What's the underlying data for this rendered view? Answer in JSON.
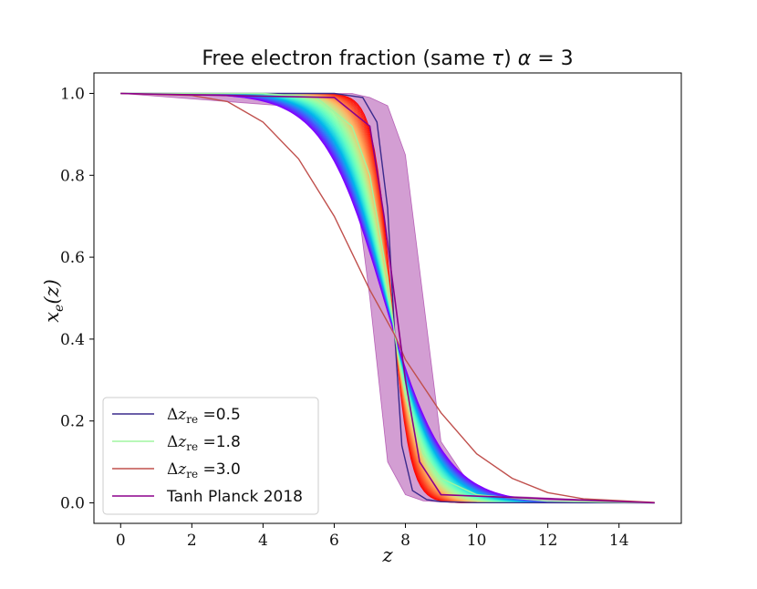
{
  "chart_data": {
    "type": "line",
    "title": "Free electron fraction (same τ) α = 3",
    "xlabel": "z",
    "ylabel": "x_e(z)",
    "xlim": [
      -0.75,
      15.75
    ],
    "ylim": [
      -0.05,
      1.05
    ],
    "xticks": [
      0,
      2,
      4,
      6,
      8,
      10,
      12,
      14
    ],
    "yticks": [
      0.0,
      0.2,
      0.4,
      0.6,
      0.8,
      1.0
    ],
    "xtick_labels": [
      "0",
      "2",
      "4",
      "6",
      "8",
      "10",
      "12",
      "14"
    ],
    "ytick_labels": [
      "0.0",
      "0.2",
      "0.4",
      "0.6",
      "0.8",
      "1.0"
    ],
    "grid": false,
    "legend_position": "lower-left",
    "x_range": [
      0,
      15
    ],
    "delta_z_re_range": [
      0.5,
      3.0
    ],
    "num_curves": 60,
    "colormap": "rainbow",
    "crossing_point": {
      "z": 7.7,
      "x_e": 0.41
    },
    "series": [
      {
        "name": "Δz_re =0.5",
        "color": "#3a2a8c",
        "x": [
          0,
          4,
          6,
          6.8,
          7.2,
          7.5,
          7.7,
          7.9,
          8.2,
          8.6,
          9,
          10,
          15
        ],
        "y": [
          1.0,
          1.0,
          1.0,
          0.99,
          0.93,
          0.72,
          0.41,
          0.14,
          0.03,
          0.008,
          0.003,
          0.0005,
          0.0
        ]
      },
      {
        "name": "Δz_re =1.8",
        "color": "#a0f5a0",
        "x": [
          0,
          4,
          5.5,
          6.5,
          7,
          7.5,
          7.7,
          8,
          8.5,
          9,
          10,
          12,
          15
        ],
        "y": [
          1.0,
          1.0,
          0.99,
          0.92,
          0.8,
          0.55,
          0.41,
          0.26,
          0.12,
          0.06,
          0.02,
          0.004,
          0.0
        ]
      },
      {
        "name": "Δz_re =3.0",
        "color": "#c0504d",
        "x": [
          0,
          2,
          3,
          4,
          5,
          6,
          7,
          7.7,
          8,
          9,
          10,
          11,
          12,
          13,
          15
        ],
        "y": [
          1.0,
          0.995,
          0.98,
          0.93,
          0.84,
          0.7,
          0.52,
          0.41,
          0.35,
          0.22,
          0.12,
          0.06,
          0.025,
          0.01,
          0.001
        ]
      },
      {
        "name": "Tanh Planck 2018",
        "color": "#8b008b",
        "x": [
          0,
          6,
          7,
          7.4,
          7.7,
          8,
          8.4,
          9,
          15
        ],
        "y": [
          1.0,
          0.99,
          0.92,
          0.7,
          0.5,
          0.3,
          0.1,
          0.02,
          0.0
        ],
        "band_x": [
          0,
          6,
          6.5,
          7,
          7.5,
          8,
          8.5,
          9,
          10,
          15
        ],
        "band_lower": [
          1.0,
          0.96,
          0.84,
          0.5,
          0.1,
          0.02,
          0.005,
          0.002,
          0.0,
          0.0
        ],
        "band_upper": [
          1.0,
          1.0,
          1.0,
          0.99,
          0.97,
          0.85,
          0.5,
          0.15,
          0.02,
          0.0
        ]
      }
    ]
  }
}
